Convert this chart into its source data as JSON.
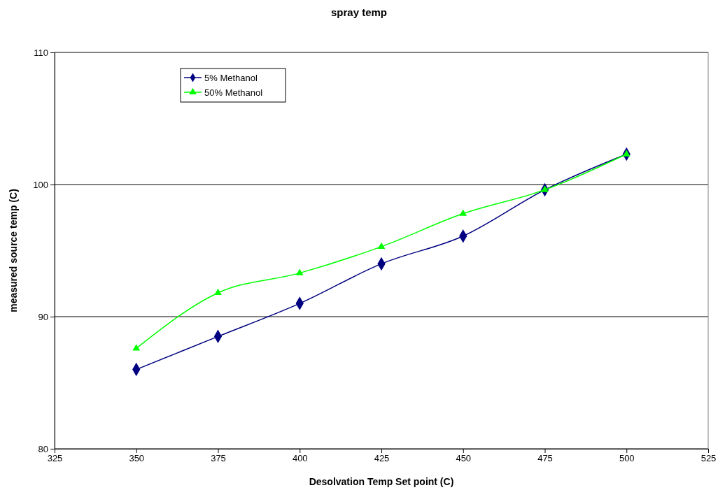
{
  "chart_data": {
    "type": "line",
    "title": "spray temp",
    "xlabel": "Desolvation Temp Set point (C)",
    "ylabel": "measured source temp (C)",
    "x": [
      350,
      375,
      400,
      425,
      450,
      475,
      500
    ],
    "xlim": [
      325,
      525
    ],
    "xticks": [
      325,
      350,
      375,
      400,
      425,
      450,
      475,
      500,
      525
    ],
    "ylim": [
      80,
      110
    ],
    "yticks": [
      80,
      90,
      100,
      110
    ],
    "grid": "y",
    "legend": "top left",
    "series": [
      {
        "name": "5% Methanol",
        "color": "#000080",
        "marker": "diamond",
        "values": [
          86.0,
          88.5,
          91.0,
          94.0,
          96.1,
          99.6,
          102.3
        ]
      },
      {
        "name": "50% Methanol",
        "color": "#00ff00",
        "marker": "triangle",
        "values": [
          87.6,
          91.8,
          93.3,
          95.3,
          97.8,
          99.6,
          102.3
        ]
      }
    ]
  }
}
